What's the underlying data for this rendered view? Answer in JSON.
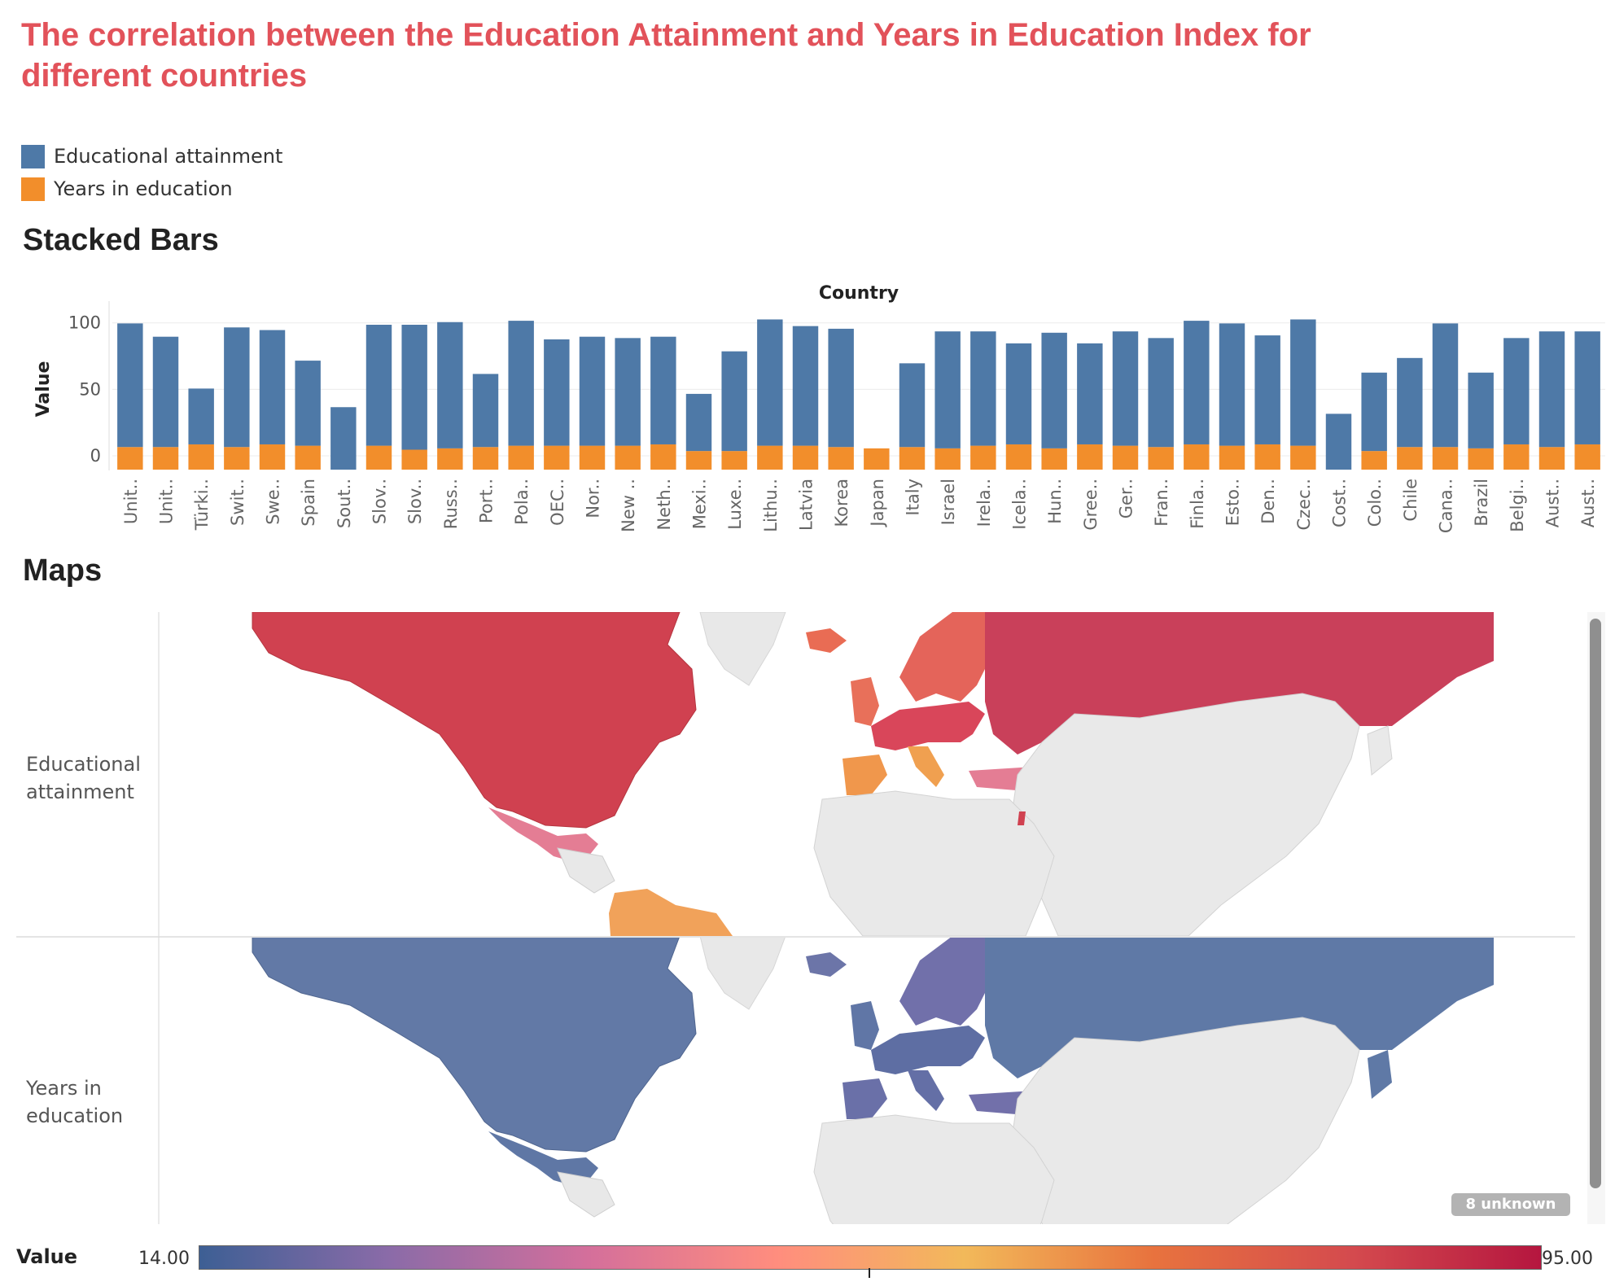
{
  "title": "The correlation between the Education Attainment and Years in Education Index for different countries",
  "legend": {
    "items": [
      {
        "label": "Educational attainment",
        "color": "#4e79a7"
      },
      {
        "label": "Years in education",
        "color": "#f28e2b"
      }
    ]
  },
  "stacked_section_title": "Stacked Bars",
  "maps_section_title": "Maps",
  "map_rows": [
    {
      "label": "Educational attainment"
    },
    {
      "label": "Years in education"
    }
  ],
  "unknown_badge": "8 unknown",
  "color_legend": {
    "title": "Value",
    "min_label": "14.00",
    "max_label": "95.00",
    "min": 14,
    "max": 95,
    "colors": [
      "#3d5f94",
      "#8a6ba8",
      "#d46f9b",
      "#ff8d7e",
      "#f2b95a",
      "#e8733e",
      "#d44a4e",
      "#b5163f"
    ]
  },
  "chart_data": {
    "type": "bar",
    "stacked": true,
    "xlabel": "Country",
    "ylabel": "Value",
    "ylim": [
      -10,
      120
    ],
    "yticks": [
      0,
      50,
      100
    ],
    "grid": true,
    "categories": [
      "Unit..",
      "Unit..",
      "Türki..",
      "Swit..",
      "Swe..",
      "Spain",
      "Sout..",
      "Slov..",
      "Slov..",
      "Russ..",
      "Port..",
      "Pola..",
      "OEC..",
      "Nor..",
      "New ..",
      "Neth..",
      "Mexi..",
      "Luxe..",
      "Lithu..",
      "Latvia",
      "Korea",
      "Japan",
      "Italy",
      "Israel",
      "Irela..",
      "Icela..",
      "Hun..",
      "Gree..",
      "Ger..",
      "Fran..",
      "Finla..",
      "Esto..",
      "Den..",
      "Czec..",
      "Cost..",
      "Colo..",
      "Chile",
      "Cana..",
      "Brazil",
      "Belgi..",
      "Aust..",
      "Aust.."
    ],
    "series": [
      {
        "name": "Years in education",
        "values": [
          17,
          17,
          19,
          17,
          19,
          18,
          0,
          18,
          15,
          16,
          17,
          18,
          18,
          18,
          18,
          19,
          14,
          14,
          18,
          18,
          17,
          16,
          17,
          16,
          18,
          19,
          16,
          19,
          18,
          17,
          19,
          18,
          19,
          18,
          0,
          14,
          17,
          17,
          16,
          19,
          17,
          19
        ]
      },
      {
        "name": "Educational attainment",
        "values": [
          93,
          83,
          42,
          90,
          86,
          64,
          47,
          91,
          94,
          95,
          55,
          94,
          80,
          82,
          81,
          81,
          43,
          75,
          95,
          90,
          89,
          0,
          63,
          88,
          86,
          76,
          87,
          76,
          86,
          82,
          93,
          92,
          82,
          95,
          42,
          59,
          67,
          93,
          57,
          80,
          87,
          85
        ]
      }
    ]
  }
}
